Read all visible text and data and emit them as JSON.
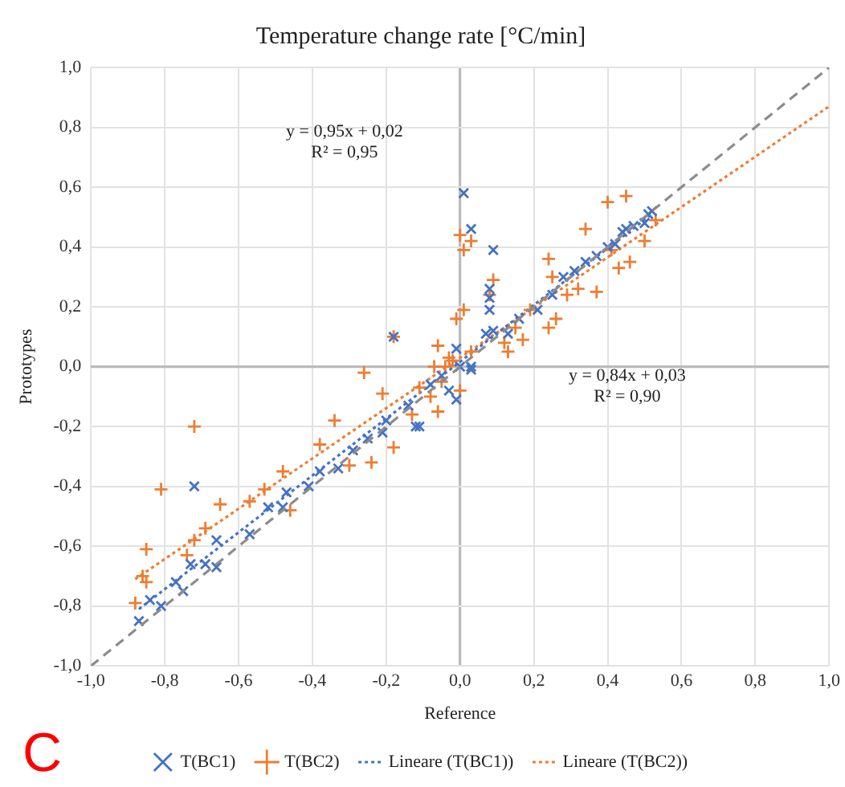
{
  "chart_data": {
    "type": "scatter",
    "title": "Temperature change rate [°C/min]",
    "xlabel": "Reference",
    "ylabel": "Prototypes",
    "xlim": [
      -1,
      1
    ],
    "ylim": [
      -1,
      1
    ],
    "xticks": [
      {
        "value": -1,
        "label": "-1,0"
      },
      {
        "value": -0.8,
        "label": "-0,8"
      },
      {
        "value": -0.6,
        "label": "-0,6"
      },
      {
        "value": -0.4,
        "label": "-0,4"
      },
      {
        "value": -0.2,
        "label": "-0,2"
      },
      {
        "value": 0,
        "label": "0,0"
      },
      {
        "value": 0.2,
        "label": "0,2"
      },
      {
        "value": 0.4,
        "label": "0,4"
      },
      {
        "value": 0.6,
        "label": "0,6"
      },
      {
        "value": 0.8,
        "label": "0,8"
      },
      {
        "value": 1,
        "label": "1,0"
      }
    ],
    "yticks": [
      {
        "value": -1,
        "label": "-1,0"
      },
      {
        "value": -0.8,
        "label": "-0,8"
      },
      {
        "value": -0.6,
        "label": "-0,6"
      },
      {
        "value": -0.4,
        "label": "-0,4"
      },
      {
        "value": -0.2,
        "label": "-0,2"
      },
      {
        "value": 0,
        "label": "0,0"
      },
      {
        "value": 0.2,
        "label": "0,2"
      },
      {
        "value": 0.4,
        "label": "0,4"
      },
      {
        "value": 0.6,
        "label": "0,6"
      },
      {
        "value": 0.8,
        "label": "0,8"
      },
      {
        "value": 1,
        "label": "1,0"
      }
    ],
    "grid": true,
    "legend": "bottom",
    "series": [
      {
        "type": "line",
        "color": "#8c8c8c",
        "line_style": "dashed",
        "marker": "none",
        "x": [
          -1,
          1
        ],
        "values": [
          -1,
          1
        ]
      },
      {
        "name": "T(BC1)",
        "type": "scatter",
        "color": "#4472c4",
        "marker": "x",
        "x": [
          -0.87,
          -0.84,
          -0.81,
          -0.77,
          -0.75,
          -0.73,
          -0.72,
          -0.69,
          -0.66,
          -0.66,
          -0.57,
          -0.52,
          -0.48,
          -0.47,
          -0.41,
          -0.38,
          -0.33,
          -0.29,
          -0.25,
          -0.21,
          -0.2,
          -0.18,
          -0.14,
          -0.12,
          -0.11,
          -0.08,
          -0.05,
          -0.03,
          -0.01,
          0,
          0.03,
          -0.01,
          0.01,
          0.03,
          0.09,
          0.08,
          0.08,
          0.08,
          0.09,
          0.07,
          0.03,
          0.13,
          0.16,
          0.21,
          0.25,
          0.28,
          0.31,
          0.34,
          0.37,
          0.4,
          0.42,
          0.44,
          0.45,
          0.47,
          0.5,
          0.51,
          0.52
        ],
        "values": [
          -0.85,
          -0.78,
          -0.8,
          -0.72,
          -0.75,
          -0.66,
          -0.4,
          -0.66,
          -0.67,
          -0.58,
          -0.56,
          -0.47,
          -0.47,
          -0.42,
          -0.4,
          -0.35,
          -0.34,
          -0.28,
          -0.24,
          -0.22,
          -0.18,
          0.1,
          -0.13,
          -0.2,
          -0.2,
          -0.06,
          -0.03,
          -0.08,
          -0.11,
          0,
          -0.01,
          0.06,
          0.58,
          0.46,
          0.39,
          0.26,
          0.23,
          0.19,
          0.12,
          0.11,
          0,
          0.11,
          0.16,
          0.19,
          0.24,
          0.3,
          0.32,
          0.35,
          0.37,
          0.4,
          0.41,
          0.45,
          0.46,
          0.47,
          0.48,
          0.51,
          0.52
        ]
      },
      {
        "name": "T(BC2)",
        "type": "scatter",
        "color": "#ed7d31",
        "marker": "cross",
        "x": [
          -0.88,
          -0.86,
          -0.85,
          -0.85,
          -0.81,
          -0.74,
          -0.72,
          -0.72,
          -0.69,
          -0.65,
          -0.57,
          -0.53,
          -0.48,
          -0.46,
          -0.38,
          -0.34,
          -0.3,
          -0.26,
          -0.24,
          -0.21,
          -0.18,
          -0.18,
          -0.13,
          -0.11,
          -0.08,
          -0.07,
          -0.06,
          -0.06,
          -0.05,
          -0.04,
          -0.03,
          -0.02,
          -0.01,
          0,
          0,
          0.01,
          0.01,
          0.03,
          0.03,
          0.08,
          0.09,
          0.12,
          0.13,
          0.15,
          0.17,
          0.19,
          0.24,
          0.24,
          0.25,
          0.26,
          0.29,
          0.32,
          0.34,
          0.37,
          0.4,
          0.41,
          0.43,
          0.45,
          0.46,
          0.5,
          0.53
        ],
        "values": [
          -0.79,
          -0.7,
          -0.72,
          -0.61,
          -0.41,
          -0.63,
          -0.58,
          -0.2,
          -0.54,
          -0.46,
          -0.45,
          -0.41,
          -0.35,
          -0.48,
          -0.26,
          -0.18,
          -0.33,
          -0.02,
          -0.32,
          -0.09,
          -0.27,
          0.1,
          -0.16,
          -0.07,
          -0.1,
          0,
          0.07,
          -0.15,
          -0.05,
          0,
          0.03,
          0.02,
          0.16,
          0.44,
          -0.08,
          0.39,
          0.19,
          0.42,
          0.05,
          0.24,
          0.29,
          0.08,
          0.05,
          0.13,
          0.09,
          0.19,
          0.36,
          0.13,
          0.3,
          0.16,
          0.24,
          0.26,
          0.46,
          0.25,
          0.55,
          0.39,
          0.33,
          0.57,
          0.35,
          0.42,
          0.49
        ]
      },
      {
        "name": "Lineare (T(BC1))",
        "type": "line",
        "color": "#4472c4",
        "line_style": "dotted",
        "marker": "none",
        "x": [
          -0.87,
          0.52
        ],
        "values": [
          -0.81,
          0.51
        ]
      },
      {
        "name": "Lineare (T(BC2))",
        "type": "line",
        "color": "#ed7d31",
        "line_style": "dotted",
        "marker": "none",
        "x": [
          -0.88,
          1
        ],
        "values": [
          -0.71,
          0.87
        ]
      }
    ],
    "annotations": [
      "y = 0,95x + 0,02\nR² = 0,95",
      "y = 0,84x + 0,03\nR² = 0,90",
      "C"
    ]
  }
}
